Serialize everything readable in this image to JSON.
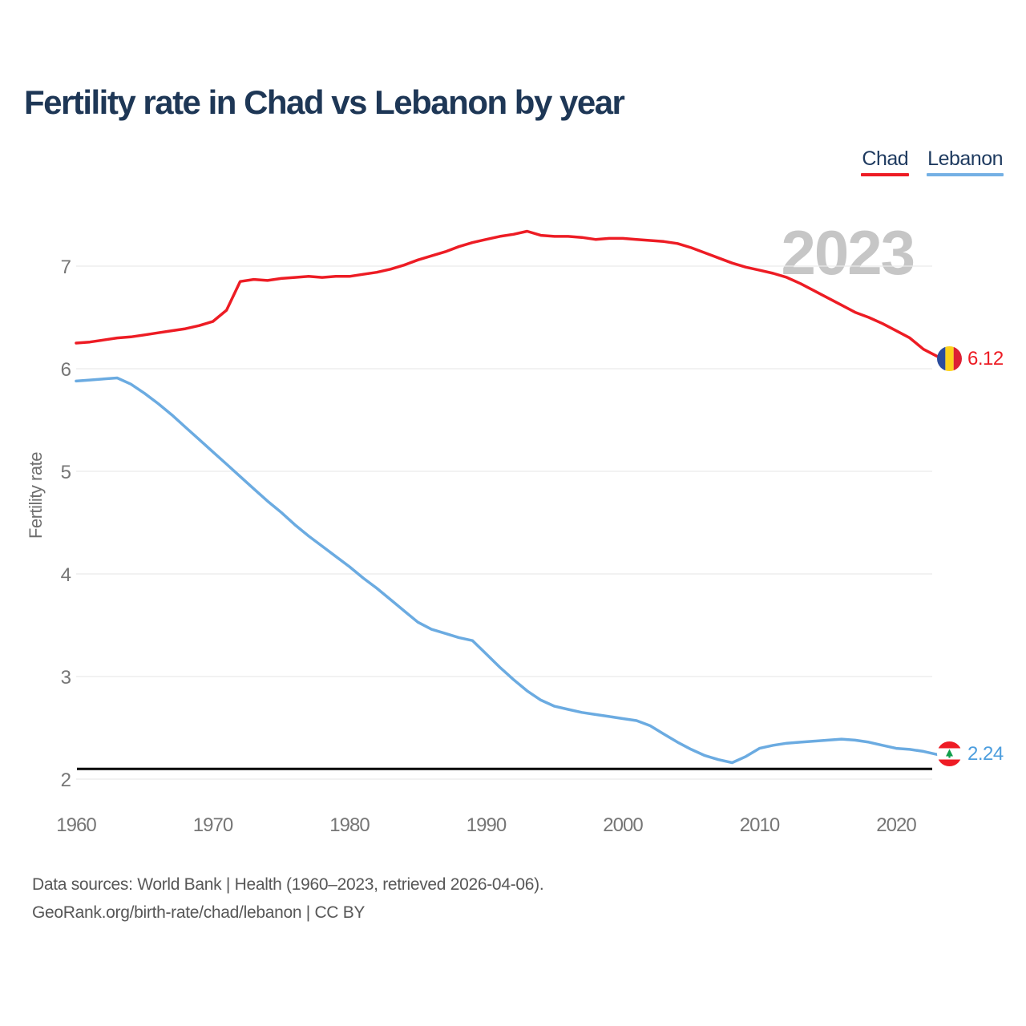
{
  "header": {
    "title": "Fertility rate in Chad vs Lebanon by year"
  },
  "legend": {
    "items": [
      {
        "label": "Chad",
        "color": "#ed1c24"
      },
      {
        "label": "Lebanon",
        "color": "#74b0e4"
      }
    ]
  },
  "watermark": "2023",
  "end_labels": {
    "chad": {
      "value": "6.12",
      "color": "#ed1c24",
      "flag": "chad-flag"
    },
    "lebanon": {
      "value": "2.24",
      "color": "#4d9ede",
      "flag": "lebanon-flag"
    }
  },
  "footer": {
    "line1": "Data sources: World Bank | Health (1960–2023, retrieved 2026-04-06).",
    "line2": "GeoRank.org/birth-rate/chad/lebanon | CC BY"
  },
  "chart_data": {
    "type": "line",
    "title": "Fertility rate in Chad vs Lebanon by year",
    "xlabel": "",
    "ylabel": "Fertility rate",
    "x_range": [
      1960,
      2023
    ],
    "ylim": [
      2,
      7.4
    ],
    "xticks": [
      1960,
      1970,
      1980,
      1990,
      2000,
      2010,
      2020
    ],
    "yticks": [
      2,
      3,
      4,
      5,
      6,
      7
    ],
    "grid": "horizontal",
    "legend_position": "top-right",
    "threshold_line": {
      "value": 2.1,
      "color": "#000000"
    },
    "colors": {
      "grid": "#e9e9e9"
    },
    "series": [
      {
        "name": "Chad",
        "color": "#ed1c24",
        "end_value": 6.12,
        "values": [
          6.25,
          6.26,
          6.28,
          6.3,
          6.31,
          6.33,
          6.35,
          6.37,
          6.39,
          6.42,
          6.46,
          6.57,
          6.85,
          6.87,
          6.86,
          6.88,
          6.89,
          6.9,
          6.89,
          6.9,
          6.9,
          6.92,
          6.94,
          6.97,
          7.01,
          7.06,
          7.1,
          7.14,
          7.19,
          7.23,
          7.26,
          7.29,
          7.31,
          7.34,
          7.3,
          7.29,
          7.29,
          7.28,
          7.26,
          7.27,
          7.27,
          7.26,
          7.25,
          7.24,
          7.22,
          7.18,
          7.13,
          7.08,
          7.03,
          6.99,
          6.96,
          6.93,
          6.89,
          6.83,
          6.76,
          6.69,
          6.62,
          6.55,
          6.5,
          6.44,
          6.37,
          6.3,
          6.19,
          6.12
        ]
      },
      {
        "name": "Lebanon",
        "color": "#6babe1",
        "end_value": 2.24,
        "values": [
          5.88,
          5.89,
          5.9,
          5.91,
          5.85,
          5.76,
          5.66,
          5.55,
          5.43,
          5.31,
          5.19,
          5.07,
          4.95,
          4.83,
          4.71,
          4.6,
          4.48,
          4.37,
          4.27,
          4.17,
          4.07,
          3.96,
          3.86,
          3.75,
          3.64,
          3.53,
          3.46,
          3.42,
          3.38,
          3.35,
          3.22,
          3.09,
          2.97,
          2.86,
          2.77,
          2.71,
          2.68,
          2.65,
          2.63,
          2.61,
          2.59,
          2.57,
          2.52,
          2.44,
          2.36,
          2.29,
          2.23,
          2.19,
          2.16,
          2.22,
          2.3,
          2.33,
          2.35,
          2.36,
          2.37,
          2.38,
          2.39,
          2.38,
          2.36,
          2.33,
          2.3,
          2.29,
          2.27,
          2.24
        ]
      }
    ]
  }
}
